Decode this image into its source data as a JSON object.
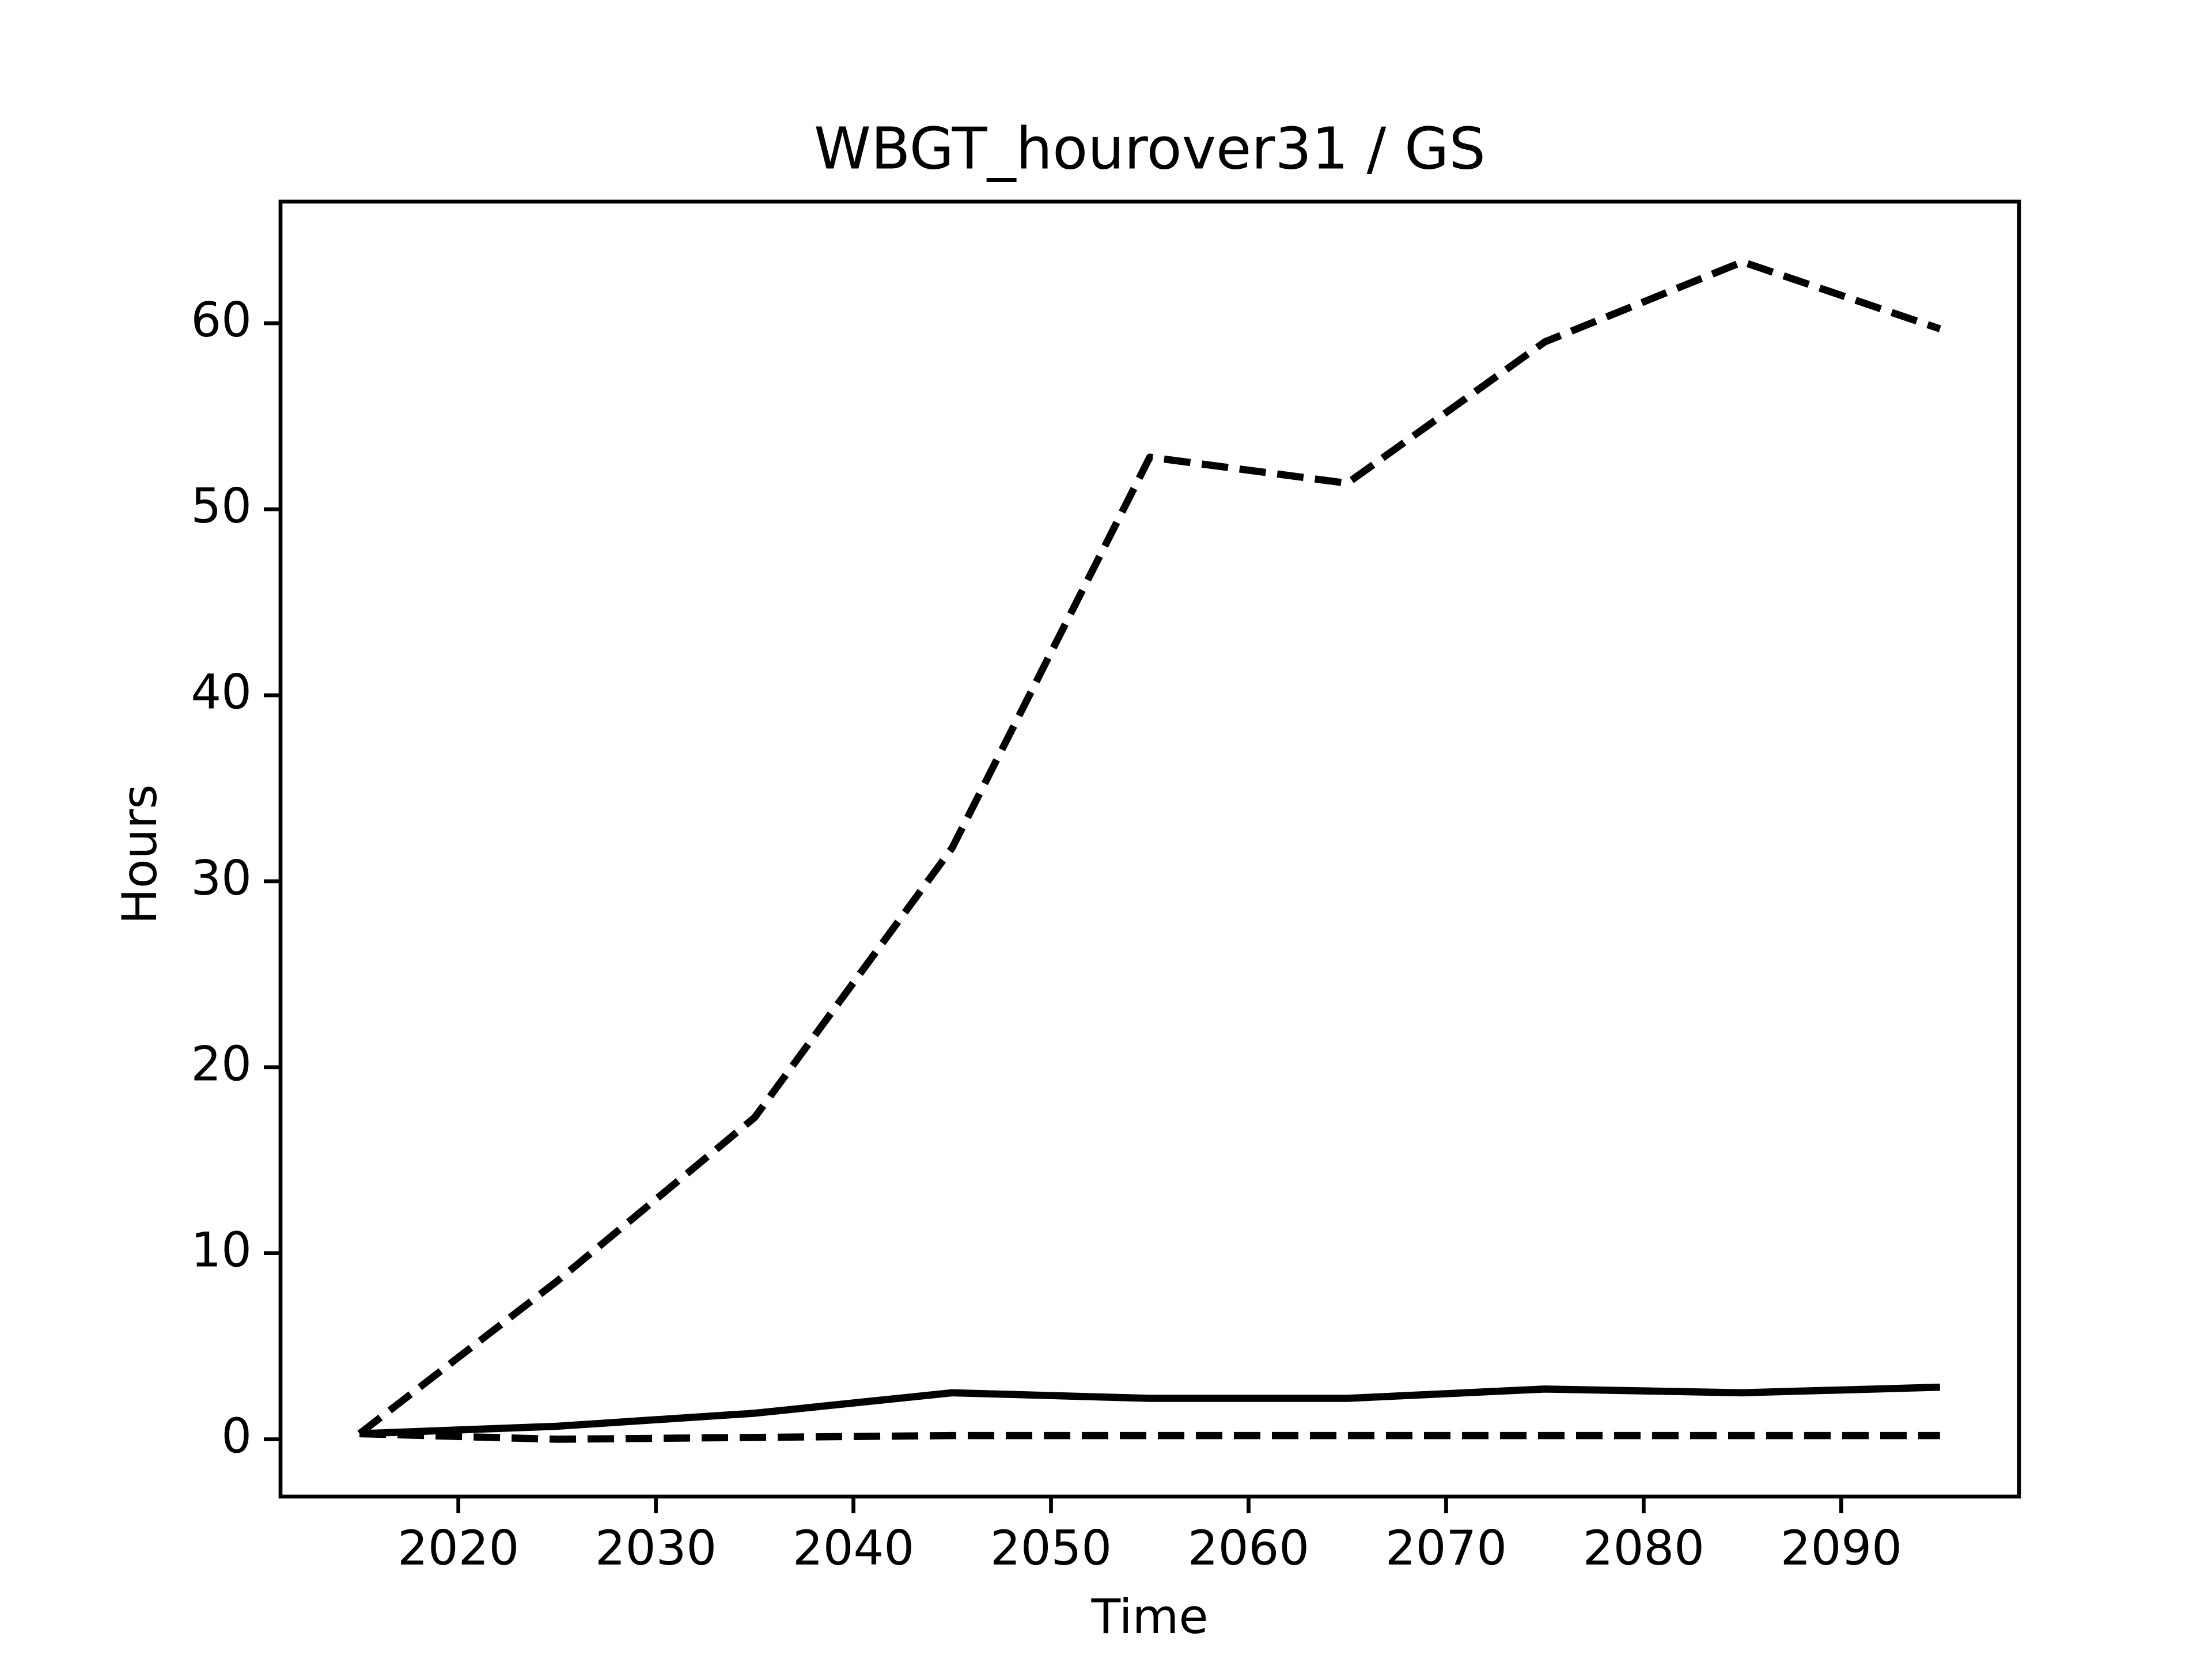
{
  "chart_data": {
    "type": "line",
    "title": "WBGT_hourover31 / GS",
    "x_label": "Time",
    "y_label": "Hours",
    "x": [
      2015,
      2025,
      2035,
      2045,
      2055,
      2065,
      2075,
      2085,
      2095
    ],
    "series": [
      {
        "color": "#000000",
        "linestyle": "dashed",
        "values": [
          0.3,
          8.5,
          17.3,
          31.8,
          52.8,
          51.4,
          59.0,
          63.3,
          59.7
        ]
      },
      {
        "color": "#000000",
        "linestyle": "solid",
        "values": [
          0.3,
          0.7,
          1.4,
          2.5,
          2.2,
          2.2,
          2.7,
          2.5,
          2.8
        ]
      },
      {
        "color": "#000000",
        "linestyle": "dashed",
        "values": [
          0.3,
          0.0,
          0.1,
          0.2,
          0.2,
          0.2,
          0.2,
          0.2,
          0.2
        ]
      }
    ],
    "xlim": [
      2011,
      2099
    ],
    "ylim": [
      -3.08,
      66.54
    ],
    "xticks": [
      2020,
      2030,
      2040,
      2050,
      2060,
      2070,
      2080,
      2090
    ],
    "yticks": [
      0,
      10,
      20,
      30,
      40,
      50,
      60
    ],
    "grid": false
  }
}
